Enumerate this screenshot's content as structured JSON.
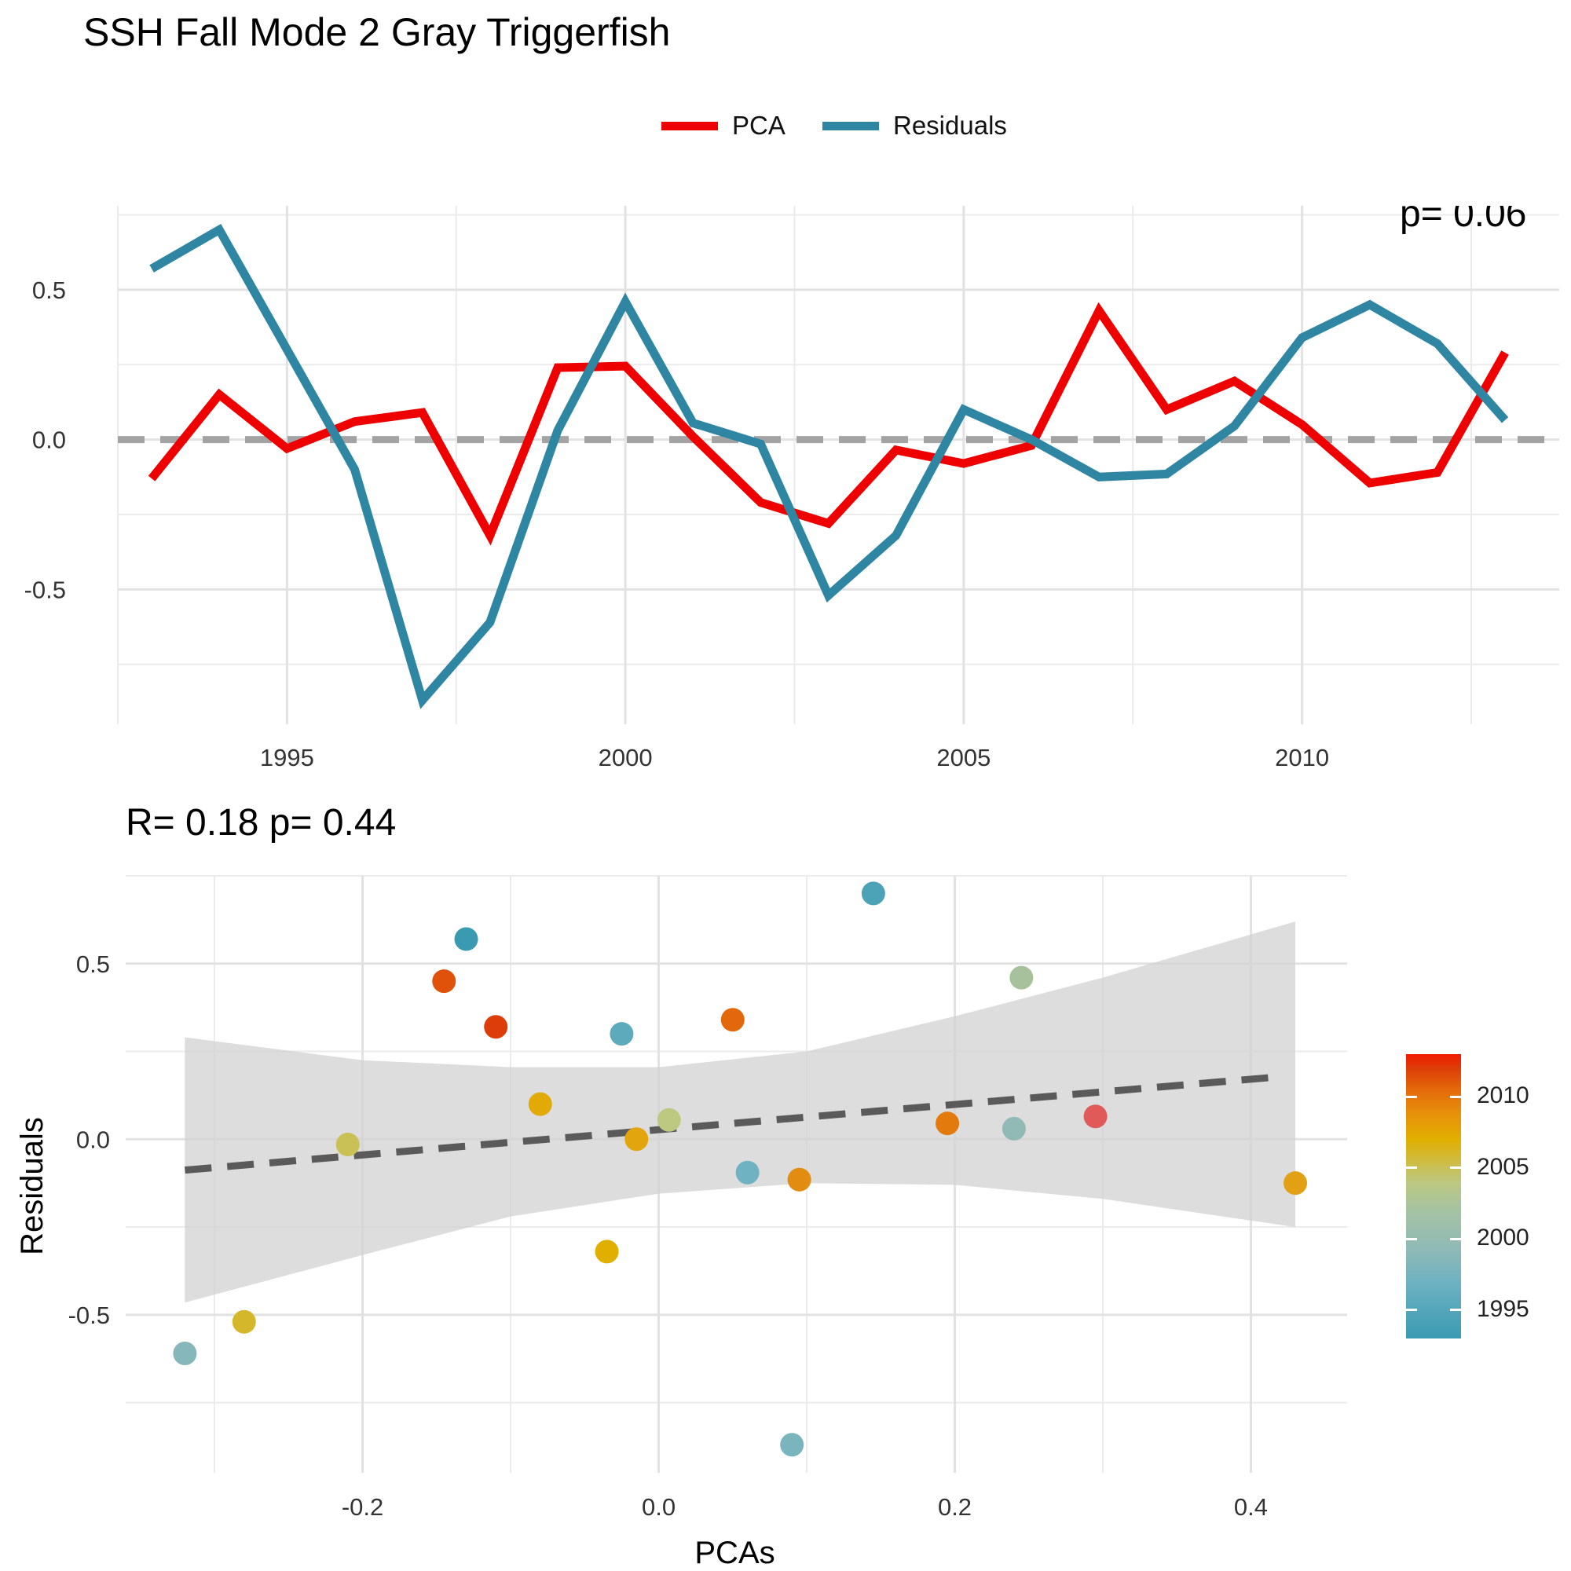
{
  "title": "SSH Fall Mode 2 Gray Triggerfish",
  "legend": {
    "items": [
      {
        "label": "PCA",
        "color": "#EE0000"
      },
      {
        "label": "Residuals",
        "color": "#2E86A3"
      }
    ]
  },
  "bottom_subtitle": "R= 0.18  p= 0.44",
  "colorbar": {
    "ticks": [
      "2010",
      "2005",
      "2000",
      "1995"
    ],
    "tick_years": [
      2010,
      2005,
      2000,
      1995
    ],
    "range": [
      1993,
      2013
    ]
  },
  "chart_data": [
    {
      "type": "line",
      "x": [
        1993,
        1994,
        1995,
        1996,
        1997,
        1998,
        1999,
        2000,
        2001,
        2002,
        2003,
        2004,
        2005,
        2006,
        2007,
        2008,
        2009,
        2010,
        2011,
        2012,
        2013
      ],
      "series": [
        {
          "name": "PCA",
          "color": "#EE0000",
          "values": [
            -0.13,
            0.15,
            -0.03,
            0.06,
            0.09,
            -0.32,
            0.24,
            0.245,
            0.01,
            -0.21,
            -0.28,
            -0.035,
            -0.08,
            -0.02,
            0.43,
            0.1,
            0.195,
            0.05,
            -0.145,
            -0.11,
            0.29
          ]
        },
        {
          "name": "Residuals",
          "color": "#2E86A3",
          "values": [
            0.57,
            0.7,
            0.3,
            -0.1,
            -0.87,
            -0.61,
            0.03,
            0.46,
            0.055,
            -0.015,
            -0.52,
            -0.32,
            0.1,
            0.0,
            -0.125,
            -0.115,
            0.045,
            0.34,
            0.45,
            0.32,
            0.065
          ]
        }
      ],
      "reference_line": 0,
      "xticks": [
        "1995",
        "2000",
        "2005",
        "2010"
      ],
      "yticks": [
        "-0.5",
        "0.0",
        "0.5"
      ],
      "xlim": [
        1992.5,
        2013.8
      ],
      "ylim": [
        -0.95,
        0.78
      ],
      "annotation_partial": "p= 0.06"
    },
    {
      "type": "scatter",
      "xlabel": "PCAs",
      "ylabel": "Residuals",
      "xticks": [
        "-0.2",
        "0.0",
        "0.2",
        "0.4"
      ],
      "yticks": [
        "-0.5",
        "0.0",
        "0.5"
      ],
      "xlim": [
        -0.36,
        0.465
      ],
      "ylim": [
        -0.95,
        0.75
      ],
      "points": [
        {
          "x": -0.13,
          "y": 0.57,
          "year": 1993
        },
        {
          "x": 0.145,
          "y": 0.7,
          "year": 1994
        },
        {
          "x": -0.025,
          "y": 0.3,
          "year": 1995
        },
        {
          "x": 0.06,
          "y": -0.095,
          "year": 1996
        },
        {
          "x": 0.09,
          "y": -0.87,
          "year": 1997
        },
        {
          "x": -0.32,
          "y": -0.61,
          "year": 1998
        },
        {
          "x": 0.24,
          "y": 0.03,
          "year": 1999
        },
        {
          "x": 0.245,
          "y": 0.46,
          "year": 2000
        },
        {
          "x": 0.007,
          "y": 0.055,
          "year": 2001
        },
        {
          "x": -0.21,
          "y": -0.015,
          "year": 2002
        },
        {
          "x": -0.28,
          "y": -0.52,
          "year": 2003
        },
        {
          "x": -0.035,
          "y": -0.32,
          "year": 2004
        },
        {
          "x": -0.08,
          "y": 0.1,
          "year": 2005
        },
        {
          "x": -0.015,
          "y": 0.0,
          "year": 2006
        },
        {
          "x": 0.43,
          "y": -0.125,
          "year": 2007
        },
        {
          "x": 0.095,
          "y": -0.115,
          "year": 2008
        },
        {
          "x": 0.195,
          "y": 0.045,
          "year": 2009
        },
        {
          "x": 0.05,
          "y": 0.34,
          "year": 2010
        },
        {
          "x": -0.145,
          "y": 0.45,
          "year": 2011
        },
        {
          "x": -0.11,
          "y": 0.32,
          "year": 2012
        },
        {
          "x": 0.295,
          "y": 0.065,
          "year": 2013
        }
      ],
      "fit_line": {
        "x": [
          -0.32,
          0.42
        ],
        "y": [
          -0.088,
          0.178
        ]
      },
      "confidence_band": {
        "x": [
          -0.32,
          -0.2,
          -0.1,
          0.0,
          0.1,
          0.2,
          0.3,
          0.43
        ],
        "upper": [
          0.29,
          0.225,
          0.205,
          0.205,
          0.25,
          0.35,
          0.46,
          0.62
        ],
        "lower": [
          -0.465,
          -0.33,
          -0.22,
          -0.155,
          -0.125,
          -0.13,
          -0.17,
          -0.25
        ]
      }
    }
  ]
}
